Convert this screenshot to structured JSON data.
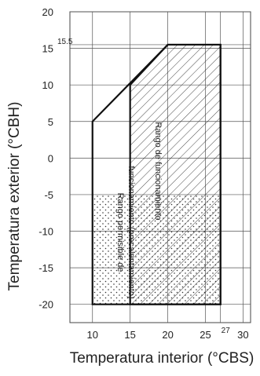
{
  "chart_data": {
    "type": "region",
    "xlabel": "Temperatura interior (°CBS)",
    "ylabel": "Temperatura exterior (°CBH)",
    "x_ticks": [
      "10",
      "15",
      "20",
      "25",
      "30"
    ],
    "y_ticks": [
      "20",
      "15",
      "10",
      "5",
      "0",
      "-5",
      "-10",
      "-15",
      "-20"
    ],
    "x_extra_tick": "27",
    "y_extra_tick": "15.5",
    "xlim": [
      7,
      31
    ],
    "ylim": [
      -22.5,
      20
    ],
    "grid": true,
    "regions": [
      {
        "name": "Rango permisible de funcionamiento (precalentamiento)",
        "label_line1": "Rango permisible de",
        "label_line2": "funcionamiento (precalentamiento)",
        "outline": [
          [
            10,
            -20
          ],
          [
            10,
            5
          ],
          [
            20,
            15.5
          ],
          [
            27,
            15.5
          ],
          [
            27,
            -20
          ]
        ],
        "fill": "dotted",
        "fill_ylim": [
          -20,
          -5
        ],
        "fill_xlim": [
          10,
          27
        ]
      },
      {
        "name": "Rango de funcionamiento",
        "label": "Rango de funcionamiento",
        "outline": [
          [
            15,
            -20
          ],
          [
            15,
            10
          ],
          [
            20,
            15.5
          ],
          [
            27,
            15.5
          ],
          [
            27,
            -20
          ]
        ],
        "fill": "hatched"
      }
    ]
  }
}
